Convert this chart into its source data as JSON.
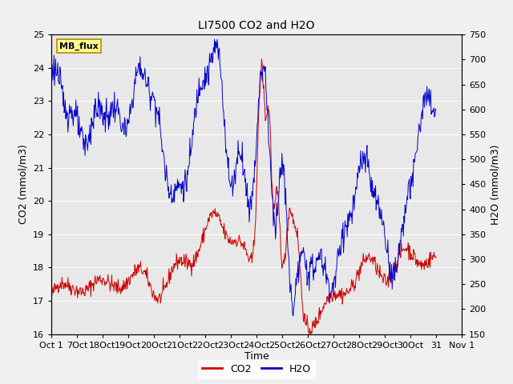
{
  "title": "LI7500 CO2 and H2O",
  "xlabel": "Time",
  "ylabel_left": "CO2 (mmol/m3)",
  "ylabel_right": "H2O (mmol/m3)",
  "co2_color": "#cc0000",
  "h2o_color": "#0000cc",
  "legend_label_co2": "CO2",
  "legend_label_h2o": "H2O",
  "watermark_text": "MB_flux",
  "watermark_bg": "#ffff99",
  "watermark_border": "#bb8800",
  "ylim_left": [
    16.0,
    25.0
  ],
  "ylim_right": [
    150,
    750
  ],
  "yticks_left": [
    16.0,
    17.0,
    18.0,
    19.0,
    20.0,
    21.0,
    22.0,
    23.0,
    24.0,
    25.0
  ],
  "yticks_right": [
    150,
    200,
    250,
    300,
    350,
    400,
    450,
    500,
    550,
    600,
    650,
    700,
    750
  ],
  "bg_color": "#e8e8e8",
  "fig_bg": "#f0f0f0",
  "grid_color": "white",
  "xtick_labels": [
    "Oct 1",
    "7Oct",
    "18Oct",
    "19Oct",
    "20Oct",
    "21Oct",
    "22Oct",
    "23Oct",
    "24Oct",
    "25Oct",
    "26Oct",
    "27Oct",
    "28Oct",
    "29Oct",
    "30Oct",
    "31",
    "Nov 1"
  ],
  "xtick_positions": [
    0,
    1,
    2,
    3,
    4,
    5,
    6,
    7,
    8,
    9,
    10,
    11,
    12,
    13,
    14,
    15,
    16
  ],
  "xlim": [
    0,
    16
  ],
  "seed": 42
}
